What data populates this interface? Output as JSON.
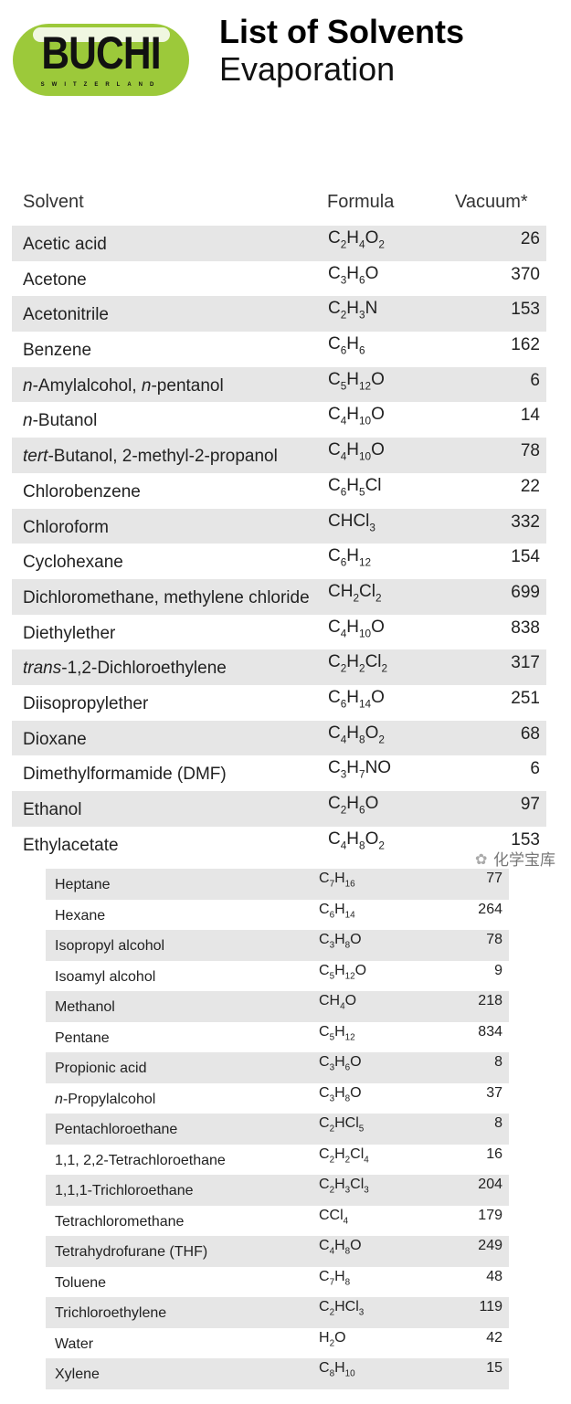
{
  "header": {
    "logo_text": "BUCHI",
    "logo_subtext": "SWITZERLAND",
    "title": "List of Solvents",
    "subtitle": "Evaporation",
    "brand_color": "#9cc93a"
  },
  "columns": {
    "solvent": "Solvent",
    "formula": "Formula",
    "vacuum": "Vacuum*"
  },
  "watermark": "化学宝库",
  "table1": [
    {
      "italic": "",
      "name": "Acetic acid",
      "formula": [
        [
          "C",
          "2"
        ],
        [
          "H",
          "4"
        ],
        [
          "O",
          "2"
        ]
      ],
      "vacuum": "26"
    },
    {
      "italic": "",
      "name": "Acetone",
      "formula": [
        [
          "C",
          "3"
        ],
        [
          "H",
          "6"
        ],
        [
          "O",
          ""
        ]
      ],
      "vacuum": "370"
    },
    {
      "italic": "",
      "name": "Acetonitrile",
      "formula": [
        [
          "C",
          "2"
        ],
        [
          "H",
          "3"
        ],
        [
          "N",
          ""
        ]
      ],
      "vacuum": "153"
    },
    {
      "italic": "",
      "name": "Benzene",
      "formula": [
        [
          "C",
          "6"
        ],
        [
          "H",
          "6"
        ]
      ],
      "vacuum": "162"
    },
    {
      "italic": "n",
      "name": "-Amylalcohol, ",
      "italic2": "n",
      "name2": "-pentanol",
      "formula": [
        [
          "C",
          "5"
        ],
        [
          "H",
          "12"
        ],
        [
          "O",
          ""
        ]
      ],
      "vacuum": "6"
    },
    {
      "italic": "n",
      "name": "-Butanol",
      "formula": [
        [
          "C",
          "4"
        ],
        [
          "H",
          "10"
        ],
        [
          "O",
          ""
        ]
      ],
      "vacuum": "14"
    },
    {
      "italic": "tert",
      "name": "-Butanol, 2-methyl-2-propanol",
      "formula": [
        [
          "C",
          "4"
        ],
        [
          "H",
          "10"
        ],
        [
          "O",
          ""
        ]
      ],
      "vacuum": "78"
    },
    {
      "italic": "",
      "name": "Chlorobenzene",
      "formula": [
        [
          "C",
          "6"
        ],
        [
          "H",
          "5"
        ],
        [
          "Cl",
          ""
        ]
      ],
      "vacuum": "22"
    },
    {
      "italic": "",
      "name": "Chloroform",
      "formula": [
        [
          "CHCl",
          "3"
        ]
      ],
      "vacuum": "332"
    },
    {
      "italic": "",
      "name": "Cyclohexane",
      "formula": [
        [
          "C",
          "6"
        ],
        [
          "H",
          "12"
        ]
      ],
      "vacuum": "154"
    },
    {
      "italic": "",
      "name": "Dichloromethane, methylene chloride",
      "formula": [
        [
          "CH",
          "2"
        ],
        [
          "Cl",
          "2"
        ]
      ],
      "vacuum": "699"
    },
    {
      "italic": "",
      "name": "Diethylether",
      "formula": [
        [
          "C",
          "4"
        ],
        [
          "H",
          "10"
        ],
        [
          "O",
          ""
        ]
      ],
      "vacuum": "838"
    },
    {
      "italic": "trans",
      "name": "-1,2-Dichloroethylene",
      "formula": [
        [
          "C",
          "2"
        ],
        [
          "H",
          "2"
        ],
        [
          "Cl",
          "2"
        ]
      ],
      "vacuum": "317"
    },
    {
      "italic": "",
      "name": "Diisopropylether",
      "formula": [
        [
          "C",
          "6"
        ],
        [
          "H",
          "14"
        ],
        [
          "O",
          ""
        ]
      ],
      "vacuum": "251"
    },
    {
      "italic": "",
      "name": "Dioxane",
      "formula": [
        [
          "C",
          "4"
        ],
        [
          "H",
          "8"
        ],
        [
          "O",
          "2"
        ]
      ],
      "vacuum": "68"
    },
    {
      "italic": "",
      "name": "Dimethylformamide (DMF)",
      "formula": [
        [
          "C",
          "3"
        ],
        [
          "H",
          "7"
        ],
        [
          "NO",
          ""
        ]
      ],
      "vacuum": "6"
    },
    {
      "italic": "",
      "name": "Ethanol",
      "formula": [
        [
          "C",
          "2"
        ],
        [
          "H",
          "6"
        ],
        [
          "O",
          ""
        ]
      ],
      "vacuum": "97"
    },
    {
      "italic": "",
      "name": "Ethylacetate",
      "formula": [
        [
          "C",
          "4"
        ],
        [
          "H",
          "8"
        ],
        [
          "O",
          "2"
        ]
      ],
      "vacuum": "153"
    }
  ],
  "table2": [
    {
      "italic": "",
      "name": "Heptane",
      "formula": [
        [
          "C",
          "7"
        ],
        [
          "H",
          "16"
        ]
      ],
      "vacuum": "77"
    },
    {
      "italic": "",
      "name": "Hexane",
      "formula": [
        [
          "C",
          "6"
        ],
        [
          "H",
          "14"
        ]
      ],
      "vacuum": "264"
    },
    {
      "italic": "",
      "name": "Isopropyl alcohol",
      "formula": [
        [
          "C",
          "3"
        ],
        [
          "H",
          "8"
        ],
        [
          "O",
          ""
        ]
      ],
      "vacuum": "78"
    },
    {
      "italic": "",
      "name": "Isoamyl alcohol",
      "formula": [
        [
          "C",
          "5"
        ],
        [
          "H",
          "12"
        ],
        [
          "O",
          ""
        ]
      ],
      "vacuum": "9"
    },
    {
      "italic": "",
      "name": "Methanol",
      "formula": [
        [
          "CH",
          "4"
        ],
        [
          "O",
          ""
        ]
      ],
      "vacuum": "218"
    },
    {
      "italic": "",
      "name": "Pentane",
      "formula": [
        [
          "C",
          "5"
        ],
        [
          "H",
          "12"
        ]
      ],
      "vacuum": "834"
    },
    {
      "italic": "",
      "name": "Propionic acid",
      "formula": [
        [
          "C",
          "3"
        ],
        [
          "H",
          "6"
        ],
        [
          "O",
          ""
        ]
      ],
      "vacuum": "8"
    },
    {
      "italic": "n",
      "name": "-Propylalcohol",
      "formula": [
        [
          "C",
          "3"
        ],
        [
          "H",
          "8"
        ],
        [
          "O",
          ""
        ]
      ],
      "vacuum": "37"
    },
    {
      "italic": "",
      "name": "Pentachloroethane",
      "formula": [
        [
          "C",
          "2"
        ],
        [
          "HCl",
          "5"
        ]
      ],
      "vacuum": "8"
    },
    {
      "italic": "",
      "name": "1,1, 2,2-Tetrachloroethane",
      "formula": [
        [
          "C",
          "2"
        ],
        [
          "H",
          "2"
        ],
        [
          "Cl",
          "4"
        ]
      ],
      "vacuum": "16"
    },
    {
      "italic": "",
      "name": "1,1,1-Trichloroethane",
      "formula": [
        [
          "C",
          "2"
        ],
        [
          "H",
          "3"
        ],
        [
          "Cl",
          "3"
        ]
      ],
      "vacuum": "204"
    },
    {
      "italic": "",
      "name": "Tetrachloromethane",
      "formula": [
        [
          "CCl",
          "4"
        ]
      ],
      "vacuum": "179"
    },
    {
      "italic": "",
      "name": "Tetrahydrofurane (THF)",
      "formula": [
        [
          "C",
          "4"
        ],
        [
          "H",
          "8"
        ],
        [
          "O",
          ""
        ]
      ],
      "vacuum": "249"
    },
    {
      "italic": "",
      "name": "Toluene",
      "formula": [
        [
          "C",
          "7"
        ],
        [
          "H",
          "8"
        ]
      ],
      "vacuum": "48"
    },
    {
      "italic": "",
      "name": "Trichloroethylene",
      "formula": [
        [
          "C",
          "2"
        ],
        [
          "HCl",
          "3"
        ]
      ],
      "vacuum": "119"
    },
    {
      "italic": "",
      "name": "Water",
      "formula": [
        [
          "H",
          "2"
        ],
        [
          "O",
          ""
        ]
      ],
      "vacuum": "42"
    },
    {
      "italic": "",
      "name": "Xylene",
      "formula": [
        [
          "C",
          "8"
        ],
        [
          "H",
          "10"
        ]
      ],
      "vacuum": "15"
    }
  ]
}
